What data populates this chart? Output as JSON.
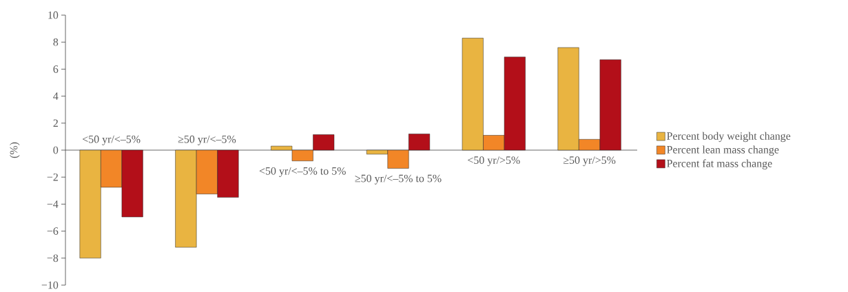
{
  "chart_data": {
    "type": "bar",
    "ylabel": "(%)",
    "categories": [
      "<50 yr/<–5%",
      "≥50 yr/<–5%",
      "<50 yr/<–5% to 5%",
      "≥50 yr/<–5% to 5%",
      "<50 yr/>5%",
      "≥50 yr/>5%"
    ],
    "series": [
      {
        "name": "Percent body weight change",
        "color": "#e9b441",
        "values": [
          -8.0,
          -7.2,
          0.3,
          -0.3,
          8.3,
          7.6
        ]
      },
      {
        "name": "Percent lean mass change",
        "color": "#f28627",
        "values": [
          -2.75,
          -3.25,
          -0.8,
          -1.35,
          1.1,
          0.8
        ]
      },
      {
        "name": "Percent fat mass change",
        "color": "#b30f19",
        "values": [
          -4.95,
          -3.5,
          1.15,
          1.2,
          6.9,
          6.7
        ]
      }
    ],
    "ylim": [
      -10,
      10
    ],
    "yticks": [
      {
        "value": -10,
        "label": "−10"
      },
      {
        "value": -8,
        "label": "−8"
      },
      {
        "value": -6,
        "label": "−6"
      },
      {
        "value": -4,
        "label": "−4"
      },
      {
        "value": -2,
        "label": "−2"
      },
      0,
      2,
      4,
      6,
      8,
      10
    ],
    "grid": false,
    "legend": "right"
  }
}
